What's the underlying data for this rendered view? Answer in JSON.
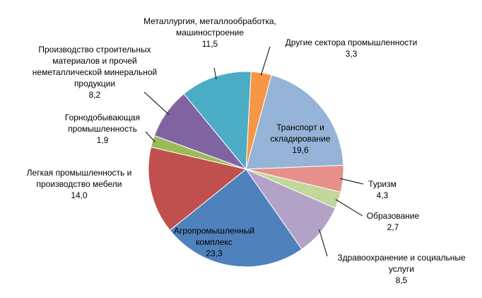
{
  "chart_data": {
    "type": "pie",
    "categories": [
      "Другие сектора промышленности",
      "Транспорт и складирование",
      "Туризм",
      "Образование",
      "Здравоохранение и социальные услуги",
      "Агропромышленный комплекс",
      "Легкая промышленность и производство мебели",
      "Горнодобывающая промышленность",
      "Производство строительных материалов и прочей неметаллической минеральной продукции",
      "Металлургия, металлообработка, машиностроение"
    ],
    "values": [
      3.3,
      19.6,
      4.3,
      2.7,
      8.5,
      23.3,
      14.0,
      1.9,
      8.2,
      11.5
    ],
    "value_labels": [
      "3,3",
      "19,6",
      "4,3",
      "2,7",
      "8,5",
      "23,3",
      "14,0",
      "1,9",
      "8,2",
      "11,5"
    ],
    "colors": [
      "#f79646",
      "#95b3d7",
      "#e6908c",
      "#c3d69b",
      "#b3a2c7",
      "#4f81bd",
      "#c0504d",
      "#9bbb59",
      "#8064a2",
      "#4bacc6"
    ]
  }
}
